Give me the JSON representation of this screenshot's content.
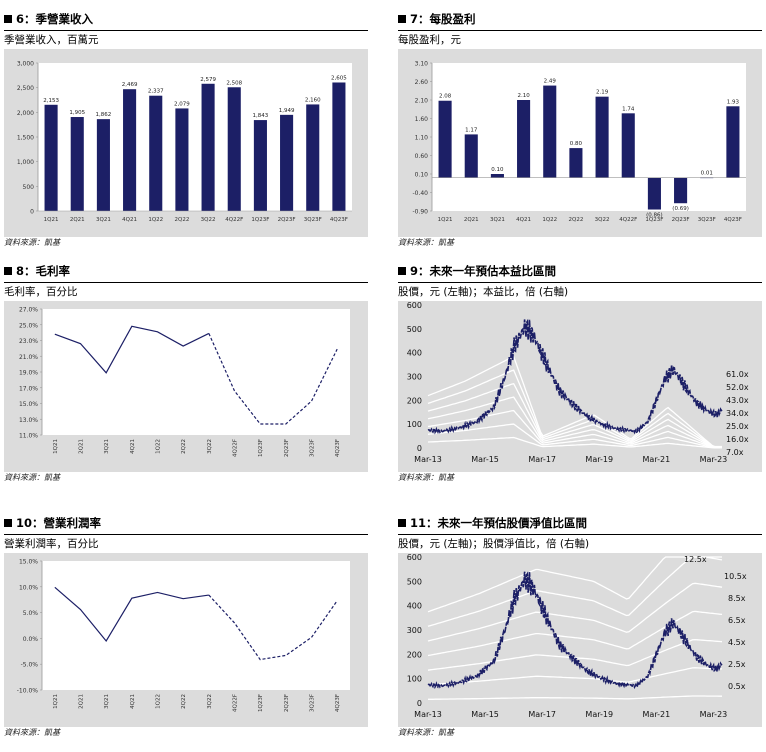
{
  "panels": [
    {
      "title": "6：季營業收入",
      "subtitle": "季營業收入，百萬元",
      "source": "資料來源：凱基",
      "chart_data": {
        "type": "bar",
        "categories": [
          "1Q21",
          "2Q21",
          "3Q21",
          "4Q21",
          "1Q22",
          "2Q22",
          "3Q22",
          "4Q22F",
          "1Q23F",
          "2Q23F",
          "3Q23F",
          "4Q23F"
        ],
        "values": [
          2153,
          1905,
          1862,
          2469,
          2337,
          2079,
          2579,
          2508,
          1843,
          1949,
          2160,
          2605
        ],
        "value_labels": [
          "2,153",
          "1,905",
          "1,862",
          "2,469",
          "2,337",
          "2,079",
          "2,579",
          "2,508",
          "1,843",
          "1,949",
          "2,160",
          "2,605"
        ],
        "ylim": [
          0,
          3000
        ],
        "yticks": [
          0,
          500,
          1000,
          1500,
          2000,
          2500,
          3000
        ],
        "ytick_labels": [
          "0",
          "500",
          "1,000",
          "1,500",
          "2,000",
          "2,500",
          "3,000"
        ],
        "color": "#1c1f66",
        "grid": false
      }
    },
    {
      "title": "7：每股盈利",
      "subtitle": "每股盈利，元",
      "source": "資料來源：凱基",
      "chart_data": {
        "type": "bar",
        "categories": [
          "1Q21",
          "2Q21",
          "3Q21",
          "4Q21",
          "1Q22",
          "2Q22",
          "3Q22",
          "4Q22F",
          "1Q23F",
          "2Q23F",
          "3Q23F",
          "4Q23F"
        ],
        "values": [
          2.08,
          1.17,
          0.1,
          2.1,
          2.49,
          0.8,
          2.19,
          1.74,
          -0.86,
          -0.69,
          0.01,
          1.93
        ],
        "value_labels": [
          "2.08",
          "1.17",
          "0.10",
          "2.10",
          "2.49",
          "0.80",
          "2.19",
          "1.74",
          "(0.86)",
          "(0.69)",
          "0.01",
          "1.93"
        ],
        "ylim": [
          -0.9,
          3.1
        ],
        "yticks": [
          -0.9,
          -0.4,
          0.1,
          0.6,
          1.1,
          1.6,
          2.1,
          2.6,
          3.1
        ],
        "ytick_labels": [
          "-0.90",
          "-0.40",
          "0.10",
          "0.60",
          "1.10",
          "1.60",
          "2.10",
          "2.60",
          "3.10"
        ],
        "color": "#1c1f66",
        "grid": false
      }
    },
    {
      "title": "8：毛利率",
      "subtitle": "毛利率，百分比",
      "source": "資料來源：凱基",
      "chart_data": {
        "type": "line",
        "categories": [
          "1Q21",
          "2Q21",
          "3Q21",
          "4Q21",
          "1Q22",
          "2Q22",
          "3Q22",
          "4Q22F",
          "1Q23F",
          "2Q23F",
          "3Q23F",
          "4Q23F"
        ],
        "values": [
          23.8,
          22.6,
          18.9,
          24.8,
          24.1,
          22.3,
          23.9,
          16.6,
          12.4,
          12.4,
          15.3,
          21.9
        ],
        "actual_count": 7,
        "ylim": [
          11.0,
          27.0
        ],
        "yticks": [
          11,
          13,
          15,
          17,
          19,
          21,
          23,
          25,
          27
        ],
        "ytick_labels": [
          "11.0%",
          "13.0%",
          "15.0%",
          "17.0%",
          "19.0%",
          "21.0%",
          "23.0%",
          "25.0%",
          "27.0%"
        ],
        "color": "#1c1f66",
        "grid": false
      }
    },
    {
      "title": "9：未來一年預估本益比區間",
      "subtitle": "股價，元 (左軸)；本益比，倍 (右軸)",
      "source": "資料來源：凱基",
      "chart_data": {
        "type": "line",
        "ylim": [
          0,
          600
        ],
        "yticks": [
          0,
          100,
          200,
          300,
          400,
          500,
          600
        ],
        "ytick_labels": [
          "0",
          "100",
          "200",
          "300",
          "400",
          "500",
          "600"
        ],
        "xtick_labels": [
          "Mar-13",
          "Mar-15",
          "Mar-17",
          "Mar-19",
          "Mar-21",
          "Mar-23"
        ],
        "band_labels": [
          "61.0x",
          "52.0x",
          "43.0x",
          "34.0x",
          "25.0x",
          "16.0x",
          "7.0x"
        ],
        "band_multiples": [
          61,
          52,
          43,
          34,
          25,
          16,
          7
        ],
        "eps_anchor_x": [
          2013.2,
          2014.5,
          2016.2,
          2017.2,
          2019.0,
          2020.3,
          2021.6,
          2023.2
        ],
        "eps_anchor_values": [
          3.6,
          4.6,
          6.3,
          0.8,
          2.3,
          0.6,
          2.8,
          0.1
        ],
        "price_anchor_x": [
          2013.2,
          2013.7,
          2014.3,
          2014.9,
          2015.5,
          2015.9,
          2016.2,
          2016.6,
          2016.9,
          2017.4,
          2017.8,
          2018.3,
          2018.8,
          2019.3,
          2019.8,
          2020.2,
          2020.5,
          2020.9,
          2021.2,
          2021.5,
          2021.8,
          2022.2,
          2022.6,
          2023.0,
          2023.3,
          2023.5
        ],
        "price_anchor_values": [
          75,
          70,
          85,
          110,
          170,
          300,
          420,
          510,
          470,
          340,
          240,
          180,
          130,
          100,
          80,
          75,
          70,
          110,
          200,
          290,
          330,
          260,
          190,
          155,
          140,
          160
        ],
        "price_color": "#1c1f66",
        "band_color": "#ffffff"
      }
    },
    {
      "title": "10：營業利潤率",
      "subtitle": "營業利潤率，百分比",
      "source": "資料來源：凱基",
      "chart_data": {
        "type": "line",
        "categories": [
          "1Q21",
          "2Q21",
          "3Q21",
          "4Q21",
          "1Q22",
          "2Q22",
          "3Q22",
          "4Q22F",
          "1Q23F",
          "2Q23F",
          "3Q23F",
          "4Q23F"
        ],
        "values": [
          9.9,
          5.6,
          -0.5,
          7.8,
          8.9,
          7.7,
          8.4,
          3.0,
          -4.1,
          -3.3,
          0.2,
          7.3
        ],
        "actual_count": 7,
        "ylim": [
          -10.0,
          15.0
        ],
        "yticks": [
          -10,
          -5,
          0,
          5,
          10,
          15
        ],
        "ytick_labels": [
          "-10.0%",
          "-5.0%",
          "0.0%",
          "5.0%",
          "10.0%",
          "15.0%"
        ],
        "color": "#1c1f66",
        "grid": false
      }
    },
    {
      "title": "11：未來一年預估股價淨值比區間",
      "subtitle": "股價，元 (左軸)；股價淨值比，倍 (右軸)",
      "source": "資料來源：凱基",
      "chart_data": {
        "type": "line",
        "ylim": [
          0,
          600
        ],
        "yticks": [
          0,
          100,
          200,
          300,
          400,
          500,
          600
        ],
        "ytick_labels": [
          "0",
          "100",
          "200",
          "300",
          "400",
          "500",
          "600"
        ],
        "xtick_labels": [
          "Mar-13",
          "Mar-15",
          "Mar-17",
          "Mar-19",
          "Mar-21",
          "Mar-23"
        ],
        "band_labels": [
          "12.5x",
          "10.5x",
          "8.5x",
          "6.5x",
          "4.5x",
          "2.5x",
          "0.5x"
        ],
        "band_multiples": [
          12.5,
          10.5,
          8.5,
          6.5,
          4.5,
          2.5,
          0.5
        ],
        "bvps_anchor_x": [
          2013.2,
          2015.0,
          2017.0,
          2019.0,
          2020.2,
          2021.5,
          2022.5,
          2023.5
        ],
        "bvps_anchor_values": [
          30,
          36,
          44,
          40,
          34,
          48,
          58,
          56
        ],
        "price_anchor_x": [
          2013.2,
          2013.7,
          2014.3,
          2014.9,
          2015.5,
          2015.9,
          2016.2,
          2016.6,
          2016.9,
          2017.4,
          2017.8,
          2018.3,
          2018.8,
          2019.3,
          2019.8,
          2020.2,
          2020.5,
          2020.9,
          2021.2,
          2021.5,
          2021.8,
          2022.2,
          2022.6,
          2023.0,
          2023.3,
          2023.5
        ],
        "price_anchor_values": [
          75,
          70,
          85,
          110,
          170,
          300,
          420,
          510,
          470,
          340,
          240,
          180,
          130,
          100,
          80,
          75,
          70,
          110,
          200,
          290,
          330,
          260,
          190,
          155,
          140,
          160
        ],
        "price_color": "#1c1f66",
        "band_color": "#ffffff"
      }
    }
  ]
}
